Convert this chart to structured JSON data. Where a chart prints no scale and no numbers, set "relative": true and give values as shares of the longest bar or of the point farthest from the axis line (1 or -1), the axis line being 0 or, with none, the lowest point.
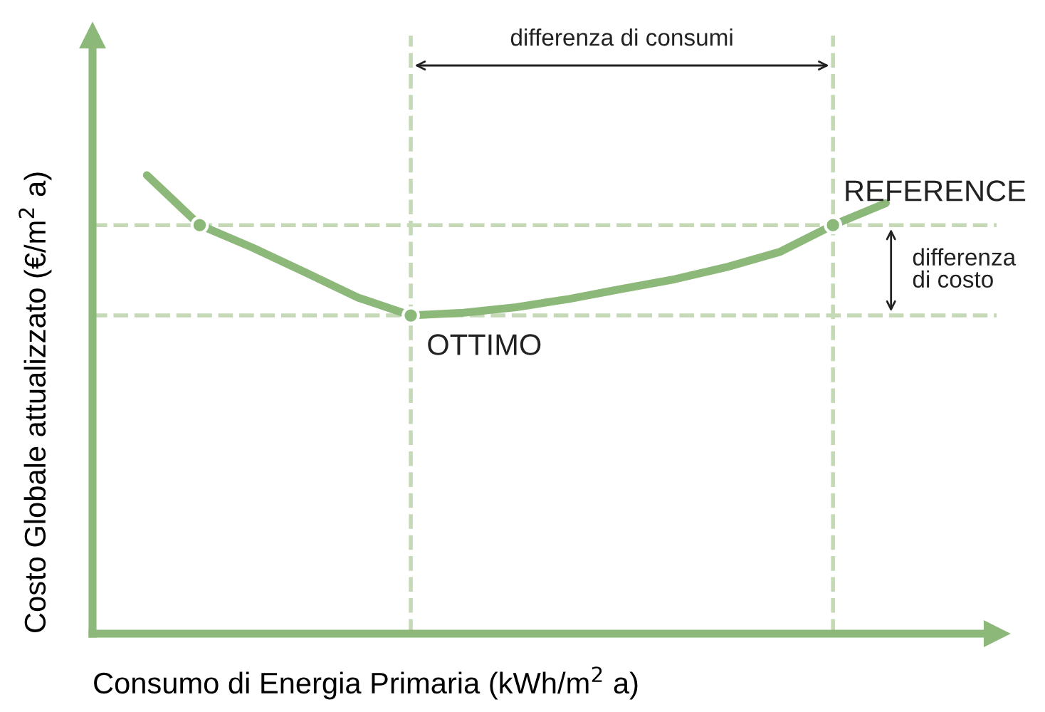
{
  "chart_data": {
    "type": "line",
    "relative": true,
    "xlabel": "Consumo di Energia Primaria (kWh/m$^{2}$ a)",
    "ylabel": "Costo Globale attualizzato (€/m$^{2}$ a)",
    "line_style": "solid",
    "categories": [
      null,
      null,
      null,
      null,
      null,
      null,
      null,
      null,
      null,
      null,
      null,
      null,
      null,
      null,
      null
    ],
    "series": [
      {
        "color": "#8cb87a",
        "values": [
          1.0,
          0.891,
          0.842,
          0.788,
          0.733,
          0.694,
          0.7,
          0.712,
          0.73,
          0.752,
          0.773,
          0.8,
          0.833,
          0.891,
          0.939
        ]
      }
    ],
    "ref_lines": [
      {
        "axis": "y",
        "value": 0.891,
        "color": "#c5d9b6",
        "line_style": "dashed"
      },
      {
        "axis": "y",
        "value": 0.694,
        "color": "#c5d9b6",
        "line_style": "dashed"
      }
    ],
    "annotations": [
      "OTTIMO",
      "REFERENCE",
      "differenza di consumi",
      "differenza\ndi costo"
    ]
  }
}
